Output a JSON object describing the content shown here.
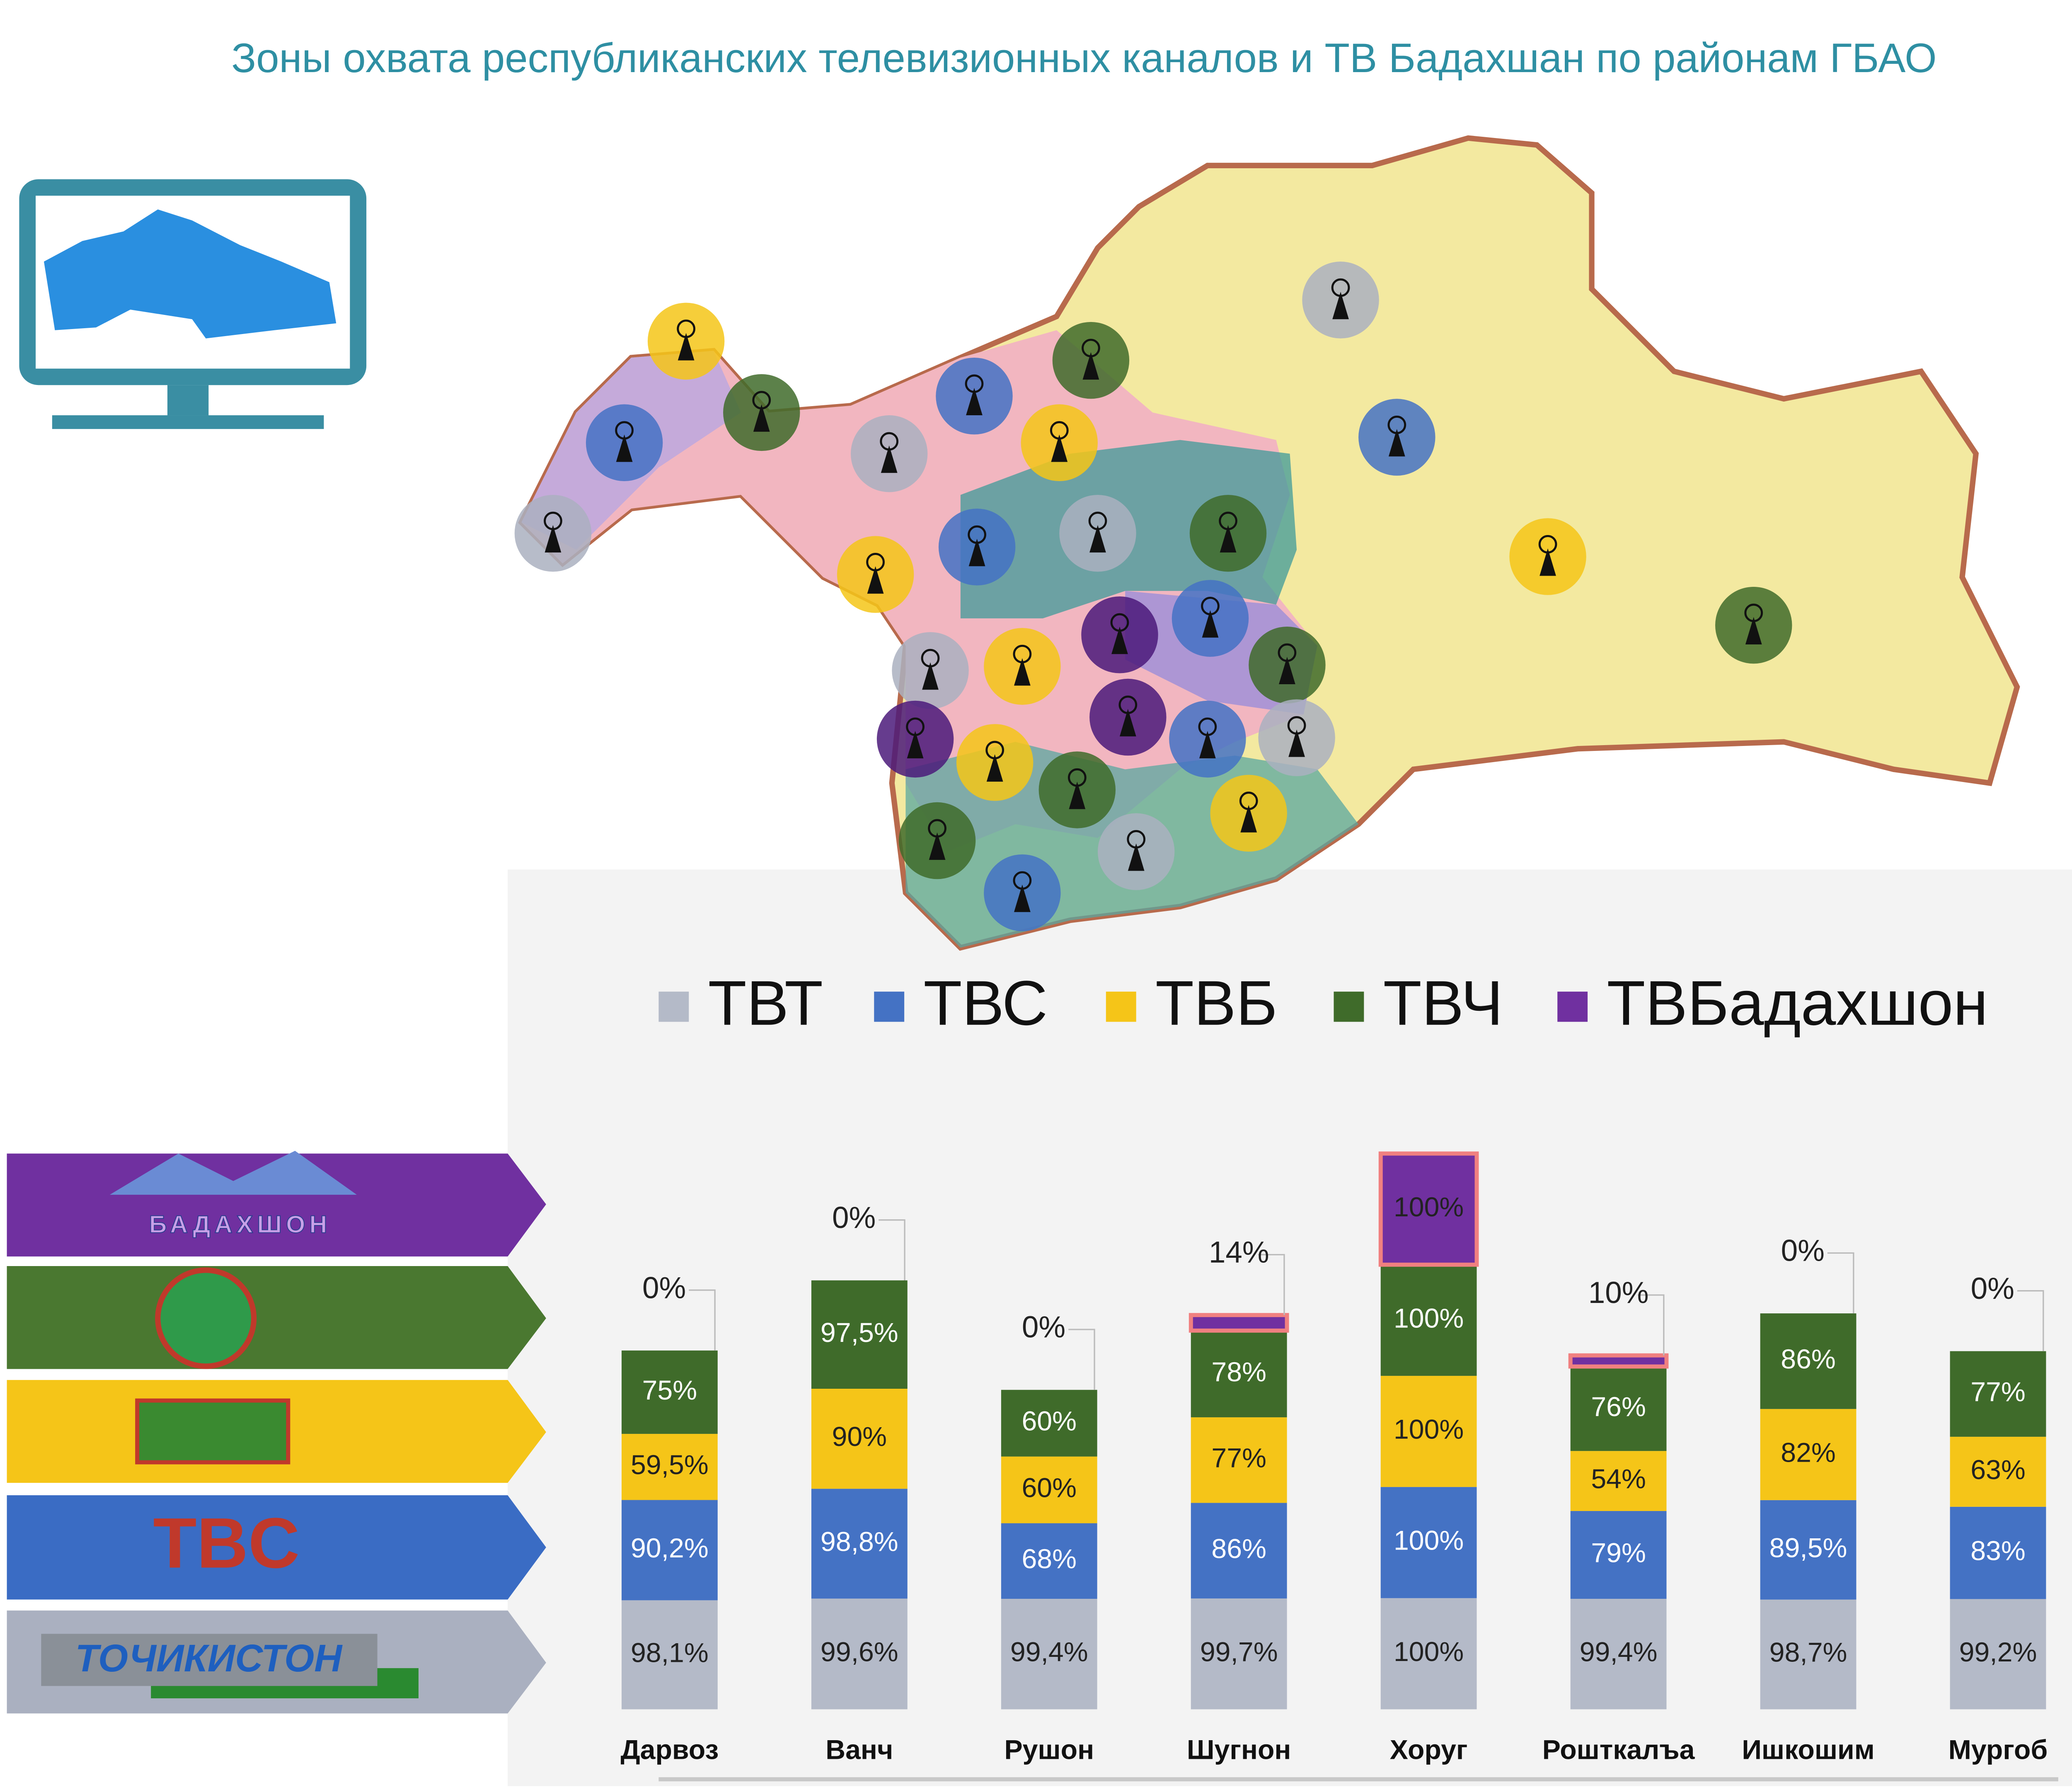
{
  "chart_data": {
    "type": "stacked-bar",
    "title": "Зоны охвата республиканских телевизионных каналов и ТВ Бадахшан по районам ГБАО",
    "categories": [
      "Дарвоз",
      "Ванч",
      "Рушон",
      "Шугнон",
      "Хоруг",
      "Рошткалъа",
      "Ишкошим",
      "Мургоб"
    ],
    "series": [
      {
        "name": "ТВТ",
        "color": "#b4bac8",
        "values": [
          98.1,
          99.6,
          99.4,
          99.7,
          100,
          99.4,
          98.7,
          99.2
        ],
        "value_labels": [
          "98,1%",
          "99,6%",
          "99,4%",
          "99,7%",
          "100%",
          "99,4%",
          "98,7%",
          "99,2%"
        ]
      },
      {
        "name": "ТВС",
        "color": "#4472c4",
        "values": [
          90.2,
          98.8,
          68,
          86,
          100,
          79,
          89.5,
          83
        ],
        "value_labels": [
          "90,2%",
          "98,8%",
          "68%",
          "86%",
          "100%",
          "79%",
          "89,5%",
          "83%"
        ]
      },
      {
        "name": "ТВБ",
        "color": "#f5c518",
        "values": [
          59.5,
          90,
          60,
          77,
          100,
          54,
          82,
          63
        ],
        "value_labels": [
          "59,5%",
          "90%",
          "60%",
          "77%",
          "100%",
          "54%",
          "82%",
          "63%"
        ]
      },
      {
        "name": "ТВЧ",
        "color": "#3f6b2a",
        "values": [
          75,
          97.5,
          60,
          78,
          100,
          76,
          86,
          77
        ],
        "value_labels": [
          "75%",
          "97,5%",
          "60%",
          "78%",
          "100%",
          "76%",
          "86%",
          "77%"
        ]
      },
      {
        "name": "ТВБадахшон",
        "color": "#7030a0",
        "values": [
          0,
          0,
          0,
          14,
          100,
          10,
          0,
          0
        ],
        "value_labels": [
          "0%",
          "0%",
          "0%",
          "14%",
          "100%",
          "10%",
          "0%",
          "0%"
        ]
      }
    ]
  },
  "logos": [
    "БАДАХШОН",
    "ТОЧИКИСТОН"
  ]
}
